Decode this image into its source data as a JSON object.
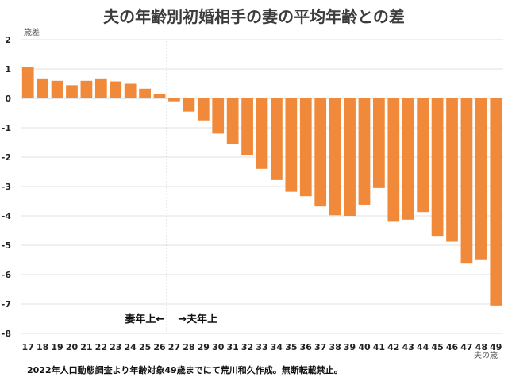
{
  "chart_data": {
    "type": "bar",
    "title": "夫の年齢別初婚相手の妻の平均年齢との差",
    "ylabel": "歳差",
    "xlabel": "夫の歳",
    "ylim": [
      -8,
      2
    ],
    "yticks": [
      2,
      1,
      0,
      -1,
      -2,
      -3,
      -4,
      -5,
      -6,
      -7,
      -8
    ],
    "categories": [
      "17",
      "18",
      "19",
      "20",
      "21",
      "22",
      "23",
      "24",
      "25",
      "26",
      "27",
      "28",
      "29",
      "30",
      "31",
      "32",
      "33",
      "34",
      "35",
      "36",
      "37",
      "38",
      "39",
      "40",
      "41",
      "42",
      "43",
      "44",
      "45",
      "46",
      "47",
      "48",
      "49"
    ],
    "values": [
      1.07,
      0.68,
      0.6,
      0.45,
      0.6,
      0.68,
      0.58,
      0.5,
      0.33,
      0.14,
      -0.1,
      -0.45,
      -0.75,
      -1.2,
      -1.55,
      -1.92,
      -2.4,
      -2.78,
      -3.18,
      -3.33,
      -3.68,
      -3.98,
      -4.0,
      -3.62,
      -3.05,
      -4.2,
      -4.13,
      -3.87,
      -4.68,
      -4.88,
      -5.6,
      -5.48,
      -7.05
    ],
    "bar_color": "#f08a3a",
    "grid": true,
    "annotations": {
      "left": "妻年上←",
      "right": "→夫年上"
    },
    "note": "2022年人口動態調査より年齢対象49歳までにて荒川和久作成。無断転載禁止。"
  }
}
